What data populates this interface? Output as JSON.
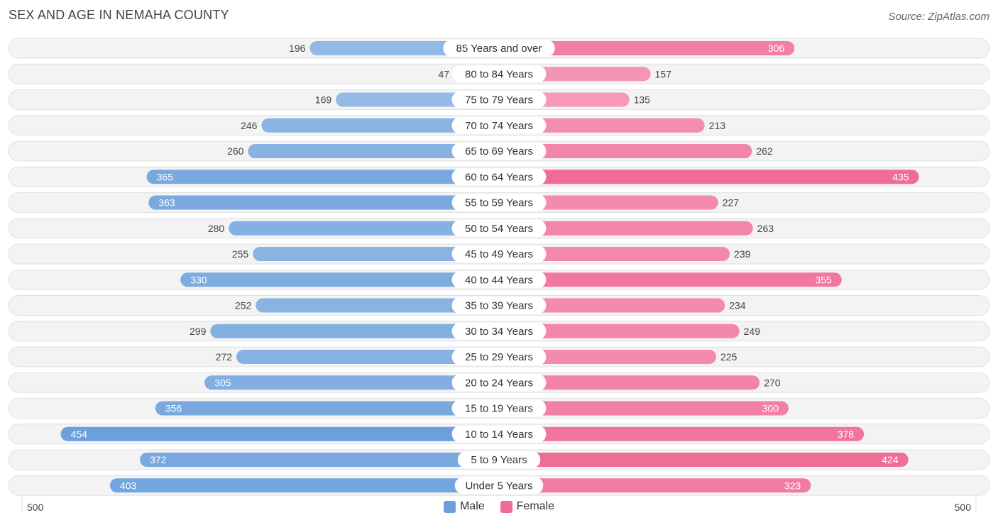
{
  "title": "SEX AND AGE IN NEMAHA COUNTY",
  "source": "Source: ZipAtlas.com",
  "axis": {
    "left_label": "500",
    "right_label": "500"
  },
  "legend": [
    {
      "label": "Male",
      "color": "#6ca0dc"
    },
    {
      "label": "Female",
      "color": "#f06b95"
    }
  ],
  "chart_data": {
    "type": "bar",
    "orientation": "horizontal-diverging",
    "xlim": [
      -500,
      500
    ],
    "categories": [
      "85 Years and over",
      "80 to 84 Years",
      "75 to 79 Years",
      "70 to 74 Years",
      "65 to 69 Years",
      "60 to 64 Years",
      "55 to 59 Years",
      "50 to 54 Years",
      "45 to 49 Years",
      "40 to 44 Years",
      "35 to 39 Years",
      "30 to 34 Years",
      "25 to 29 Years",
      "20 to 24 Years",
      "15 to 19 Years",
      "10 to 14 Years",
      "5 to 9 Years",
      "Under 5 Years"
    ],
    "series": [
      {
        "name": "Male",
        "color": "#6ca0dc",
        "values": [
          196,
          47,
          169,
          246,
          260,
          365,
          363,
          280,
          255,
          330,
          252,
          299,
          272,
          305,
          356,
          454,
          372,
          403
        ]
      },
      {
        "name": "Female",
        "color": "#f06b95",
        "values": [
          306,
          157,
          135,
          213,
          262,
          435,
          227,
          263,
          239,
          355,
          234,
          249,
          225,
          270,
          300,
          378,
          424,
          323
        ]
      }
    ]
  }
}
